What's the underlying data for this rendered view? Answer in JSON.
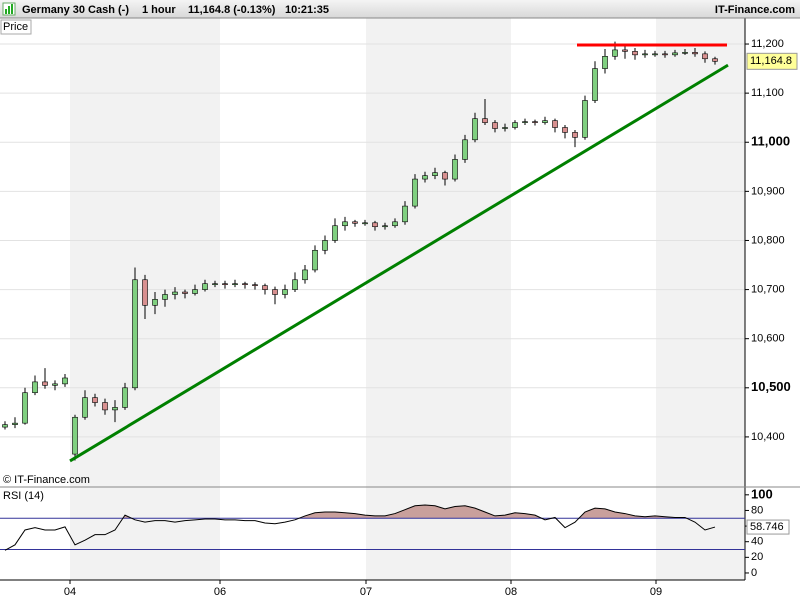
{
  "chart_data": {
    "type": "candlestick",
    "header": {
      "title": "Germany 30 Cash (-)",
      "interval": "1 hour",
      "quote": "11,164.8 (-0.13%)",
      "time": "10:21:35",
      "brand": "IT-Finance.com"
    },
    "panel_label": "Price",
    "copyright": "© IT-Finance.com",
    "xlim": [
      -0.5,
      74
    ],
    "xticks": [
      {
        "value": 6.5,
        "label": "04"
      },
      {
        "value": 21.5,
        "label": "06"
      },
      {
        "value": 36.1,
        "label": "07"
      },
      {
        "value": 50.6,
        "label": "08"
      },
      {
        "value": 65.1,
        "label": "09"
      }
    ],
    "ylim": [
      10298,
      11253
    ],
    "yticks": [
      {
        "value": 10400,
        "label": "10,400"
      },
      {
        "value": 10500,
        "label": "10,500",
        "bold": true
      },
      {
        "value": 10600,
        "label": "10,600"
      },
      {
        "value": 10700,
        "label": "10,700"
      },
      {
        "value": 10800,
        "label": "10,800"
      },
      {
        "value": 10900,
        "label": "10,900"
      },
      {
        "value": 11000,
        "label": "11,000",
        "bold": true
      },
      {
        "value": 11100,
        "label": "11,100"
      },
      {
        "value": 11200,
        "label": "11,200"
      }
    ],
    "grid": true,
    "up_color": "#80d080",
    "down_color": "#d89090",
    "open": [
      10420,
      10425,
      10428,
      10490,
      10512,
      10505,
      10508,
      10365,
      10440,
      10480,
      10470,
      10455,
      10460,
      10500,
      10720,
      10668,
      10680,
      10690,
      10695,
      10692,
      10700,
      10712,
      10712,
      10710,
      10712,
      10710,
      10708,
      10700,
      10690,
      10700,
      10720,
      10740,
      10780,
      10800,
      10830,
      10838,
      10835,
      10836,
      10828,
      10830,
      10838,
      10870,
      10925,
      10932,
      10938,
      10925,
      10965,
      11005,
      11048,
      11040,
      11028,
      11030,
      11040,
      11042,
      11040,
      11044,
      11030,
      11020,
      11010,
      11085,
      11150,
      11175,
      11188,
      11185,
      11178,
      11180,
      11180,
      11178,
      11182,
      11183,
      11180,
      11170
    ],
    "high": [
      10432,
      10440,
      10500,
      10525,
      10540,
      10515,
      10528,
      10445,
      10495,
      10488,
      10478,
      10475,
      10510,
      10745,
      10730,
      10695,
      10700,
      10705,
      10700,
      10710,
      10720,
      10718,
      10718,
      10720,
      10716,
      10715,
      10712,
      10706,
      10710,
      10735,
      10750,
      10790,
      10810,
      10845,
      10848,
      10842,
      10842,
      10840,
      10836,
      10845,
      10880,
      10935,
      10940,
      10948,
      10942,
      10975,
      11015,
      11060,
      11088,
      11045,
      11038,
      11045,
      11048,
      11046,
      11052,
      11048,
      11035,
      11025,
      11095,
      11165,
      11190,
      11205,
      11200,
      11192,
      11188,
      11186,
      11186,
      11188,
      11190,
      11192,
      11185,
      11174
    ],
    "low": [
      10415,
      10418,
      10425,
      10485,
      10498,
      10495,
      10502,
      10352,
      10435,
      10462,
      10445,
      10430,
      10455,
      10495,
      10640,
      10650,
      10665,
      10680,
      10682,
      10688,
      10696,
      10705,
      10702,
      10705,
      10702,
      10700,
      10690,
      10670,
      10682,
      10695,
      10712,
      10735,
      10772,
      10795,
      10820,
      10828,
      10830,
      10820,
      10822,
      10826,
      10832,
      10865,
      10918,
      10925,
      10912,
      10920,
      10958,
      11000,
      11035,
      11020,
      11022,
      11026,
      11035,
      11034,
      11036,
      11020,
      11008,
      10990,
      11005,
      11080,
      11140,
      11168,
      11170,
      11168,
      11172,
      11174,
      11172,
      11174,
      11178,
      11174,
      11162,
      11158
    ],
    "close": [
      10425,
      10428,
      10490,
      10512,
      10505,
      10508,
      10520,
      10440,
      10480,
      10470,
      10455,
      10460,
      10500,
      10720,
      10668,
      10680,
      10690,
      10695,
      10692,
      10700,
      10712,
      10712,
      10710,
      10712,
      10710,
      10708,
      10700,
      10690,
      10700,
      10720,
      10740,
      10780,
      10800,
      10830,
      10838,
      10835,
      10836,
      10828,
      10830,
      10838,
      10870,
      10925,
      10932,
      10938,
      10925,
      10965,
      11005,
      11048,
      11040,
      11028,
      11030,
      11040,
      11042,
      11040,
      11044,
      11030,
      11020,
      11010,
      11085,
      11150,
      11175,
      11188,
      11185,
      11178,
      11180,
      11180,
      11178,
      11182,
      11183,
      11180,
      11170,
      11164.8
    ],
    "last_price": {
      "value": 11164.8,
      "label": "11,164.8"
    },
    "trendlines": [
      {
        "color": "#008000",
        "x": [
          6.5,
          72.3
        ],
        "y": [
          10351,
          11157
        ]
      },
      {
        "color": "#ff0000",
        "x": [
          57.2,
          72.2
        ],
        "y": [
          11198,
          11198
        ]
      }
    ],
    "rsi": {
      "name": "RSI (14)",
      "ylim": [
        -9,
        110
      ],
      "yticks": [
        0,
        20,
        40,
        60,
        80,
        {
          "value": 100,
          "label": "100",
          "bold": true
        }
      ],
      "levels": [
        30,
        70
      ],
      "values": [
        29,
        36,
        55,
        58,
        55,
        55,
        59,
        36,
        42,
        49,
        49,
        55,
        74,
        68,
        65,
        67,
        67,
        65,
        67,
        68,
        69,
        69,
        68,
        68,
        67,
        67,
        64,
        63,
        65,
        68,
        73,
        77,
        78,
        78,
        77,
        76,
        74,
        73,
        73,
        76,
        81,
        86,
        87,
        86,
        82,
        85,
        86,
        83,
        78,
        73,
        74,
        77,
        76,
        74,
        68,
        71,
        58,
        65,
        78,
        83,
        82,
        78,
        76,
        73,
        72,
        73,
        72,
        71,
        71,
        65,
        55,
        58.746
      ],
      "last": 58.746
    }
  }
}
